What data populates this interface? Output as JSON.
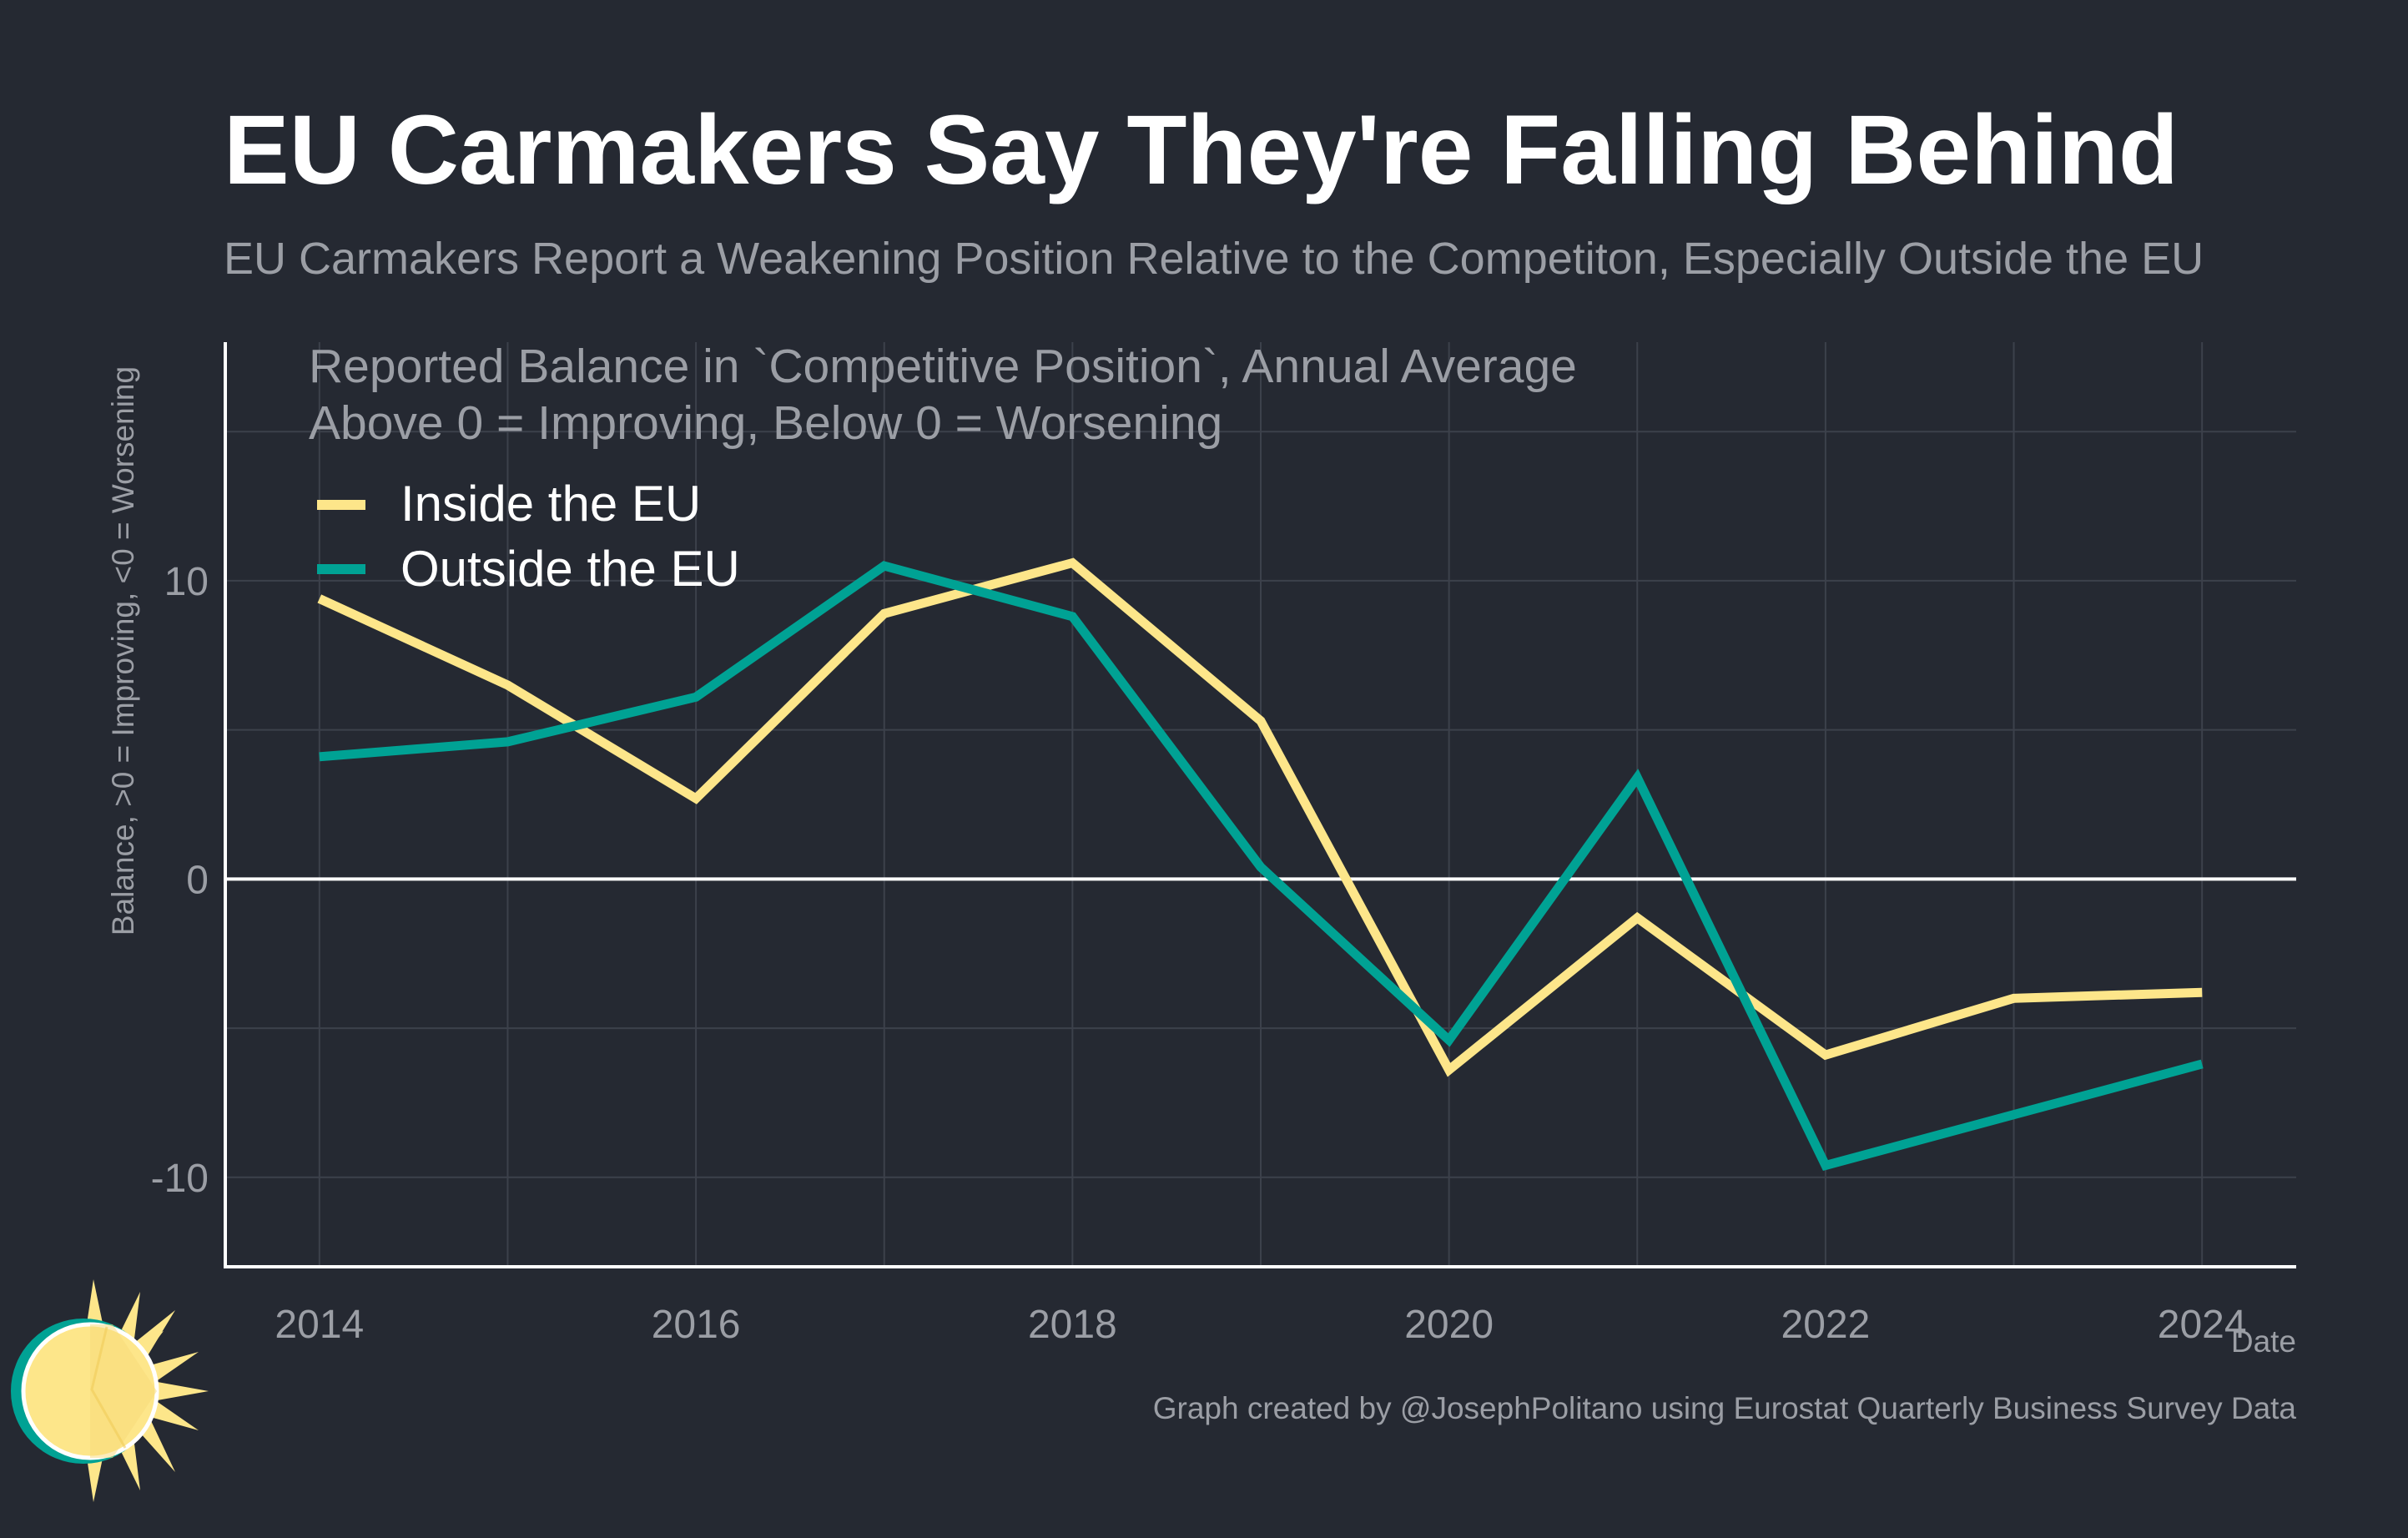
{
  "title": "EU Carmakers Say They're Falling Behind",
  "subtitle": "EU Carmakers Report a Weakening Position Relative to the Competiton, Especially Outside the EU",
  "colors": {
    "background": "#252932",
    "title": "#ffffff",
    "muted_text": "#9b9ea5",
    "inside_eu": "#fde68a",
    "outside_eu": "#00a294",
    "zero_line": "#ffffff",
    "grid": "#3c414b"
  },
  "chart_data": {
    "type": "line",
    "annotation_lines": [
      "Reported Balance in `Competitive Position`, Annual Average",
      "Above 0 = Improving, Below 0 = Worsening"
    ],
    "xlabel": "Date",
    "ylabel": "Balance, >0 = Improving, <0 = Worsening",
    "x": [
      2014,
      2015,
      2016,
      2017,
      2018,
      2019,
      2020,
      2021,
      2022,
      2023,
      2024
    ],
    "x_ticks": [
      2014,
      2016,
      2018,
      2020,
      2022,
      2024
    ],
    "y_ticks": [
      -10,
      0,
      10
    ],
    "xlim": [
      2013.5,
      2024.5
    ],
    "ylim": [
      -13,
      18
    ],
    "grid": true,
    "legend_position": "top-left",
    "series": [
      {
        "name": "Inside the EU",
        "color": "#fde68a",
        "values": [
          9.4,
          6.5,
          2.7,
          8.9,
          10.6,
          5.3,
          -6.4,
          -1.3,
          -5.9,
          -4.0,
          -3.8
        ]
      },
      {
        "name": "Outside the EU",
        "color": "#00a294",
        "values": [
          4.1,
          4.6,
          6.1,
          10.5,
          8.8,
          0.4,
          -5.4,
          3.4,
          -9.6,
          -7.9,
          -6.2
        ]
      }
    ]
  },
  "footer": {
    "credit": "Graph created by @JosephPolitano using Eurostat Quarterly Business Survey Data",
    "logo_icon": "sun-logo-icon"
  }
}
